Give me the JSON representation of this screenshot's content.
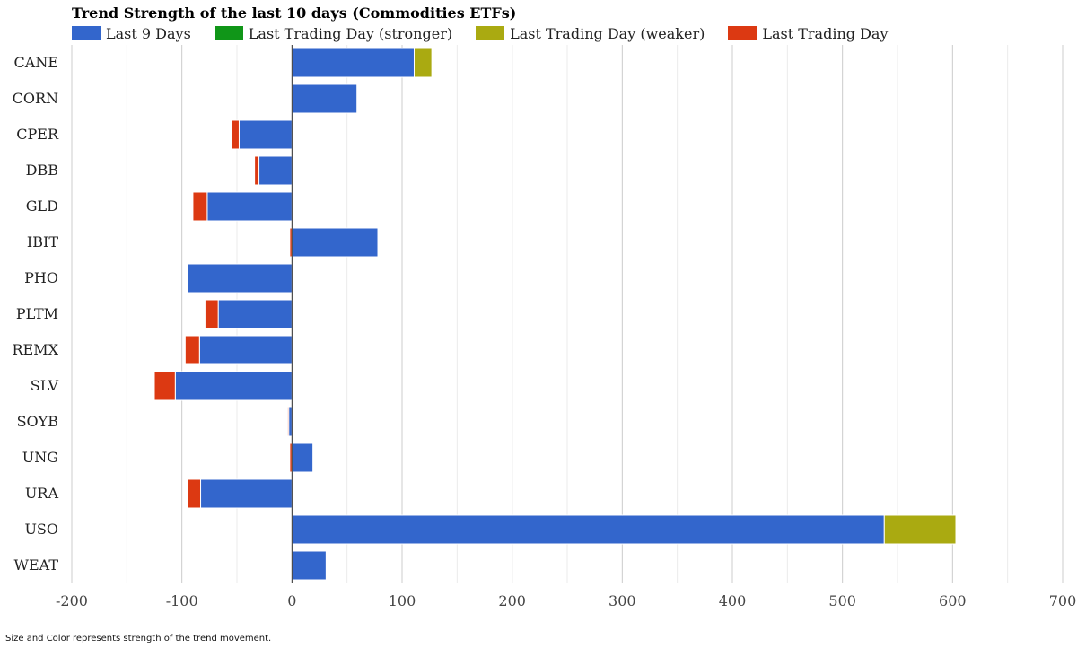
{
  "chart_data": {
    "type": "bar",
    "orientation": "horizontal",
    "stacked": true,
    "title": "Trend Strength of the last 10 days (Commodities ETFs)",
    "categories": [
      "CANE",
      "CORN",
      "CPER",
      "DBB",
      "GLD",
      "IBIT",
      "PHO",
      "PLTM",
      "REMX",
      "SLV",
      "SOYB",
      "UNG",
      "URA",
      "USO",
      "WEAT"
    ],
    "series": [
      {
        "name": "Last 9 Days",
        "color": "#3366cc",
        "values": [
          111,
          59,
          -48,
          -30,
          -77,
          78,
          -95,
          -67,
          -84,
          -106,
          -3,
          19,
          -83,
          538,
          31
        ]
      },
      {
        "name": "Last Trading Day (stronger)",
        "color": "#109618",
        "values": [
          0,
          0,
          0,
          0,
          0,
          0,
          0,
          0,
          0,
          0,
          0,
          0,
          0,
          0,
          0
        ]
      },
      {
        "name": "Last Trading Day (weaker)",
        "color": "#aaaa11",
        "values": [
          16,
          0,
          0,
          0,
          0,
          0,
          0,
          0,
          0,
          0,
          0,
          0,
          0,
          65,
          0
        ]
      },
      {
        "name": "Last Trading Day",
        "color": "#dc3912",
        "values": [
          0,
          0,
          -7,
          -4,
          -13,
          -2,
          0,
          -12,
          -13,
          -19,
          -1,
          -2,
          -12,
          0,
          0
        ]
      }
    ],
    "xlim": [
      -200,
      700
    ],
    "xticks": [
      -200,
      -100,
      0,
      100,
      200,
      300,
      400,
      500,
      600,
      700
    ],
    "grid": true,
    "legend_position": "top-left",
    "xlabel": "",
    "ylabel": ""
  },
  "footnote": "Size and Color represents strength of the trend movement."
}
